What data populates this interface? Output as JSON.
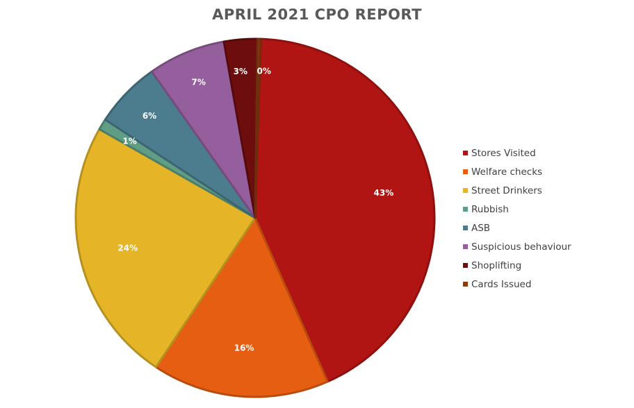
{
  "chart_data": {
    "type": "pie",
    "title": "APRIL 2021 CPO REPORT",
    "categories": [
      "Stores Visited",
      "Welfare checks",
      "Street Drinkers",
      "Rubbish",
      "ASB",
      "Suspicious behaviour",
      "Shoplifting",
      "Cards Issued"
    ],
    "values": [
      43,
      16,
      24,
      1,
      6,
      7,
      3,
      0
    ],
    "labels": [
      "43%",
      "16%",
      "24%",
      "1%",
      "6%",
      "7%",
      "3%",
      "0%"
    ],
    "colors": [
      "#B01513",
      "#E65E12",
      "#E5B527",
      "#5F9E84",
      "#4C7D8F",
      "#955E9C",
      "#6D0D0D",
      "#8A3A10"
    ],
    "legend_position": "right"
  }
}
